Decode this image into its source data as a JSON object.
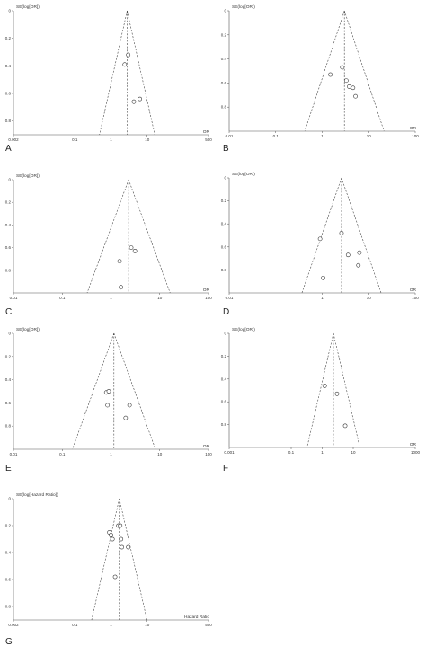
{
  "chart_data": [
    {
      "panel": "A",
      "type": "scatter",
      "ylabel": "SE(log[OR])",
      "xlabel": "OR",
      "x_scale": "log",
      "x_ticks": [
        "0.002",
        "0.1",
        "1",
        "10",
        "500"
      ],
      "x_tick_values": [
        0.002,
        0.1,
        1,
        10,
        500
      ],
      "y_ticks": [
        "0",
        "0.2",
        "0.4",
        "0.6",
        "0.8"
      ],
      "y_tick_values": [
        0,
        0.2,
        0.4,
        0.6,
        0.8
      ],
      "xlim": [
        0.002,
        500
      ],
      "ylim": [
        0,
        0.9
      ],
      "pooled_or": 2.8,
      "points": [
        {
          "or": 3.0,
          "se": 0.32
        },
        {
          "or": 2.4,
          "se": 0.39
        },
        {
          "or": 4.3,
          "se": 0.66
        },
        {
          "or": 6.3,
          "se": 0.64
        }
      ]
    },
    {
      "panel": "B",
      "type": "scatter",
      "ylabel": "SE(log[OR])",
      "xlabel": "OR",
      "x_scale": "log",
      "x_ticks": [
        "0.01",
        "0.1",
        "1",
        "10",
        "100"
      ],
      "x_tick_values": [
        0.01,
        0.1,
        1,
        10,
        100
      ],
      "y_ticks": [
        "0",
        "0.2",
        "0.4",
        "0.6",
        "0.8"
      ],
      "y_tick_values": [
        0,
        0.2,
        0.4,
        0.6,
        0.8
      ],
      "xlim": [
        0.01,
        100
      ],
      "ylim": [
        0,
        1.0
      ],
      "pooled_or": 3.0,
      "points": [
        {
          "or": 1.5,
          "se": 0.53
        },
        {
          "or": 2.7,
          "se": 0.47
        },
        {
          "or": 3.3,
          "se": 0.58
        },
        {
          "or": 3.8,
          "se": 0.63
        },
        {
          "or": 4.6,
          "se": 0.64
        },
        {
          "or": 5.2,
          "se": 0.71
        }
      ]
    },
    {
      "panel": "C",
      "type": "scatter",
      "ylabel": "SE(log[OR])",
      "xlabel": "OR",
      "x_scale": "log",
      "x_ticks": [
        "0.01",
        "0.1",
        "1",
        "10",
        "100"
      ],
      "x_tick_values": [
        0.01,
        0.1,
        1,
        10,
        100
      ],
      "y_ticks": [
        "0",
        "0.2",
        "0.4",
        "0.6",
        "0.8"
      ],
      "y_tick_values": [
        0,
        0.2,
        0.4,
        0.6,
        0.8
      ],
      "xlim": [
        0.01,
        100
      ],
      "ylim": [
        0,
        1.0
      ],
      "pooled_or": 2.3,
      "points": [
        {
          "or": 2.6,
          "se": 0.6
        },
        {
          "or": 3.1,
          "se": 0.63
        },
        {
          "or": 1.5,
          "se": 0.72
        },
        {
          "or": 1.6,
          "se": 0.95
        }
      ]
    },
    {
      "panel": "D",
      "type": "scatter",
      "ylabel": "SE(log[OR])",
      "xlabel": "OR",
      "x_scale": "log",
      "x_ticks": [
        "0.01",
        "1",
        "10",
        "100"
      ],
      "x_tick_values": [
        0.01,
        1,
        10,
        100
      ],
      "y_ticks": [
        "0",
        "0.2",
        "0.4",
        "0.6",
        "0.8"
      ],
      "y_tick_values": [
        0,
        0.2,
        0.4,
        0.6,
        0.8
      ],
      "xlim": [
        0.01,
        100
      ],
      "ylim": [
        0,
        1.0
      ],
      "pooled_or": 2.6,
      "points": [
        {
          "or": 0.9,
          "se": 0.53
        },
        {
          "or": 2.6,
          "se": 0.48
        },
        {
          "or": 3.6,
          "se": 0.67
        },
        {
          "or": 6.3,
          "se": 0.65
        },
        {
          "or": 6.0,
          "se": 0.76
        },
        {
          "or": 1.05,
          "se": 0.87
        }
      ]
    },
    {
      "panel": "E",
      "type": "scatter",
      "ylabel": "SE(log[OR])",
      "xlabel": "OR",
      "x_scale": "log",
      "x_ticks": [
        "0.01",
        "0.1",
        "1",
        "10",
        "100"
      ],
      "x_tick_values": [
        0.01,
        0.1,
        1,
        10,
        100
      ],
      "y_ticks": [
        "0",
        "0.2",
        "0.4",
        "0.6",
        "0.8"
      ],
      "y_tick_values": [
        0,
        0.2,
        0.4,
        0.6,
        0.8
      ],
      "xlim": [
        0.01,
        100
      ],
      "ylim": [
        0,
        1.0
      ],
      "pooled_or": 1.15,
      "points": [
        {
          "or": 0.8,
          "se": 0.51
        },
        {
          "or": 0.9,
          "se": 0.5
        },
        {
          "or": 0.85,
          "se": 0.62
        },
        {
          "or": 2.4,
          "se": 0.62
        },
        {
          "or": 2.0,
          "se": 0.73
        }
      ]
    },
    {
      "panel": "F",
      "type": "scatter",
      "ylabel": "SE(log[OR])",
      "xlabel": "OR",
      "x_scale": "log",
      "x_ticks": [
        "0.001",
        "0.1",
        "1",
        "10",
        "1000"
      ],
      "x_tick_values": [
        0.001,
        0.1,
        1,
        10,
        1000
      ],
      "y_ticks": [
        "0",
        "0.2",
        "0.4",
        "0.6",
        "0.8"
      ],
      "y_tick_values": [
        0,
        0.2,
        0.4,
        0.6,
        0.8
      ],
      "xlim": [
        0.001,
        1000
      ],
      "ylim": [
        0,
        1.0
      ],
      "pooled_or": 2.3,
      "points": [
        {
          "or": 1.2,
          "se": 0.46
        },
        {
          "or": 3.0,
          "se": 0.53
        },
        {
          "or": 5.5,
          "se": 0.81
        }
      ]
    },
    {
      "panel": "G",
      "type": "scatter",
      "ylabel": "SE(log[Hazard Ratio])",
      "xlabel": "Hazard Ratio",
      "x_scale": "log",
      "x_ticks": [
        "0.002",
        "0.1",
        "1",
        "10",
        "500"
      ],
      "x_tick_values": [
        0.002,
        0.1,
        1,
        10,
        500
      ],
      "y_ticks": [
        "0",
        "0.2",
        "0.4",
        "0.6",
        "0.8"
      ],
      "y_tick_values": [
        0,
        0.2,
        0.4,
        0.6,
        0.8
      ],
      "xlim": [
        0.002,
        500
      ],
      "ylim": [
        0,
        0.9
      ],
      "pooled_or": 1.7,
      "points": [
        {
          "or": 1.6,
          "se": 0.2
        },
        {
          "or": 1.8,
          "se": 0.2
        },
        {
          "or": 0.9,
          "se": 0.25
        },
        {
          "or": 1.0,
          "se": 0.27
        },
        {
          "or": 1.1,
          "se": 0.3
        },
        {
          "or": 1.9,
          "se": 0.3
        },
        {
          "or": 2.0,
          "se": 0.36
        },
        {
          "or": 3.0,
          "se": 0.36
        },
        {
          "or": 1.3,
          "se": 0.58
        }
      ]
    }
  ]
}
